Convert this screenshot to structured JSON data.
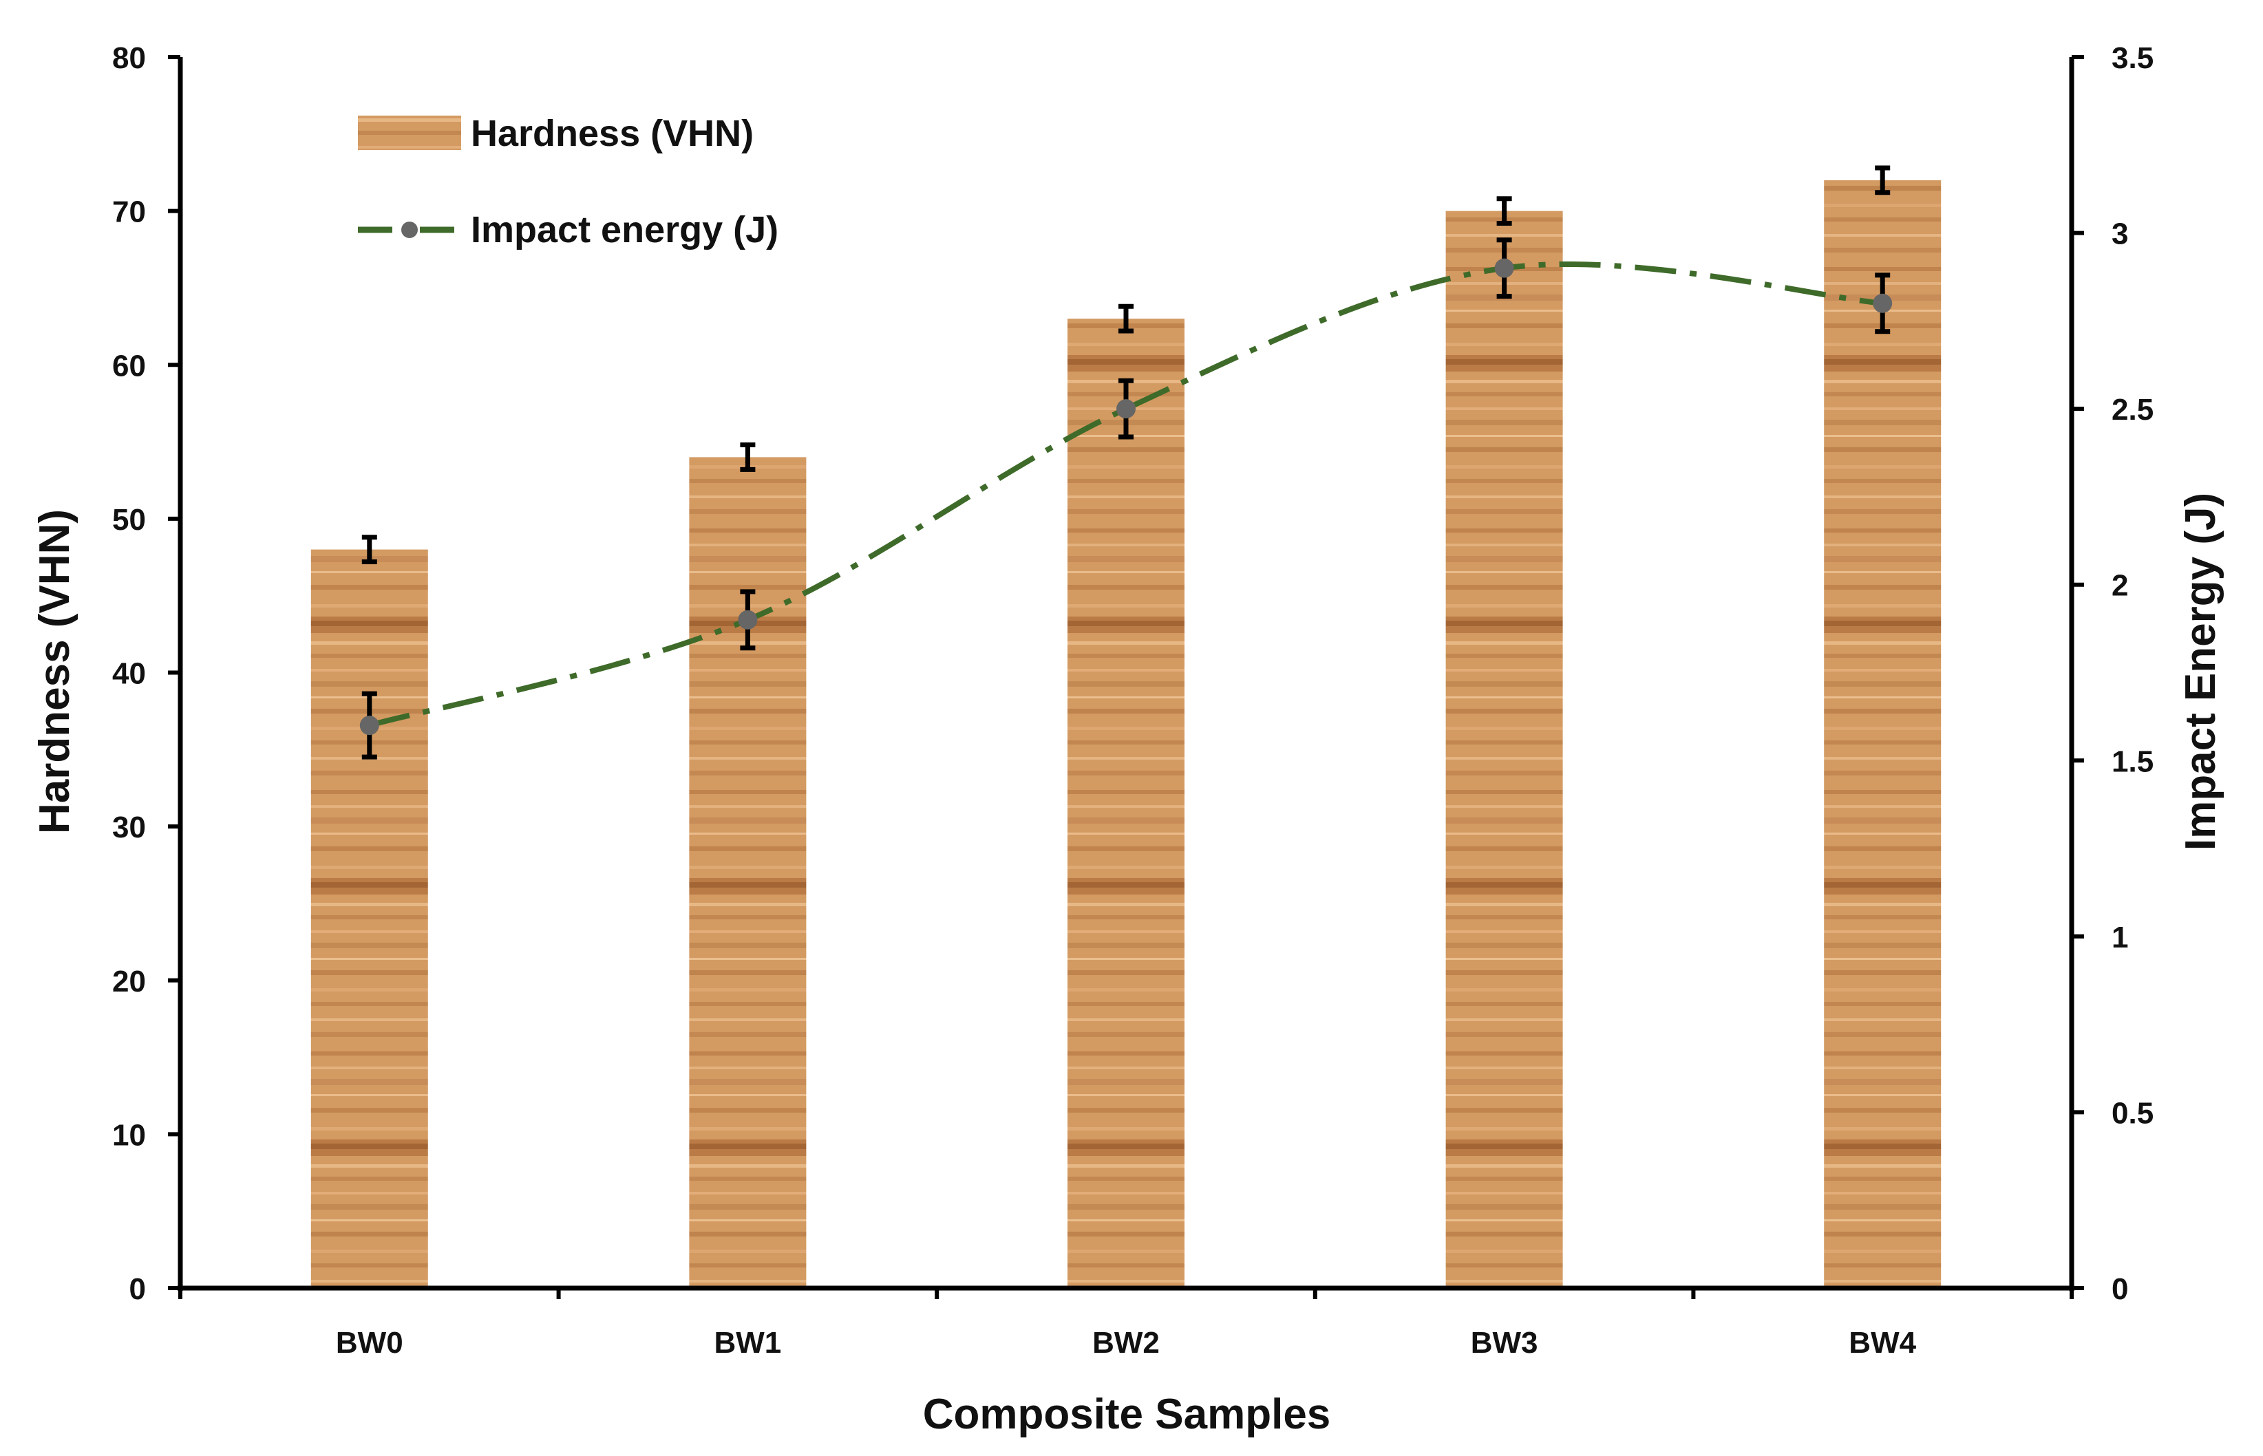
{
  "chart_data": {
    "type": "bar+line",
    "title": "",
    "xlabel": "Composite Samples",
    "categories": [
      "BW0",
      "BW1",
      "BW2",
      "BW3",
      "BW4"
    ],
    "series": [
      {
        "name": "Hardness (VHN)",
        "type": "bar",
        "axis": "left",
        "values": [
          48,
          54,
          63,
          70,
          72
        ],
        "error": [
          0.8,
          0.8,
          0.8,
          0.8,
          0.8
        ],
        "color": "#c8894f"
      },
      {
        "name": "Impact energy (J)",
        "type": "line",
        "axis": "right",
        "values": [
          1.6,
          1.9,
          2.5,
          2.9,
          2.8
        ],
        "error": [
          0.09,
          0.08,
          0.08,
          0.08,
          0.08
        ],
        "color": "#3f6b2a",
        "marker_color": "#666666",
        "line_style": "dash-dot",
        "smooth": true
      }
    ],
    "y_left": {
      "label": "Hardness (VHN)",
      "range": [
        0,
        80
      ],
      "ticks": [
        0,
        10,
        20,
        30,
        40,
        50,
        60,
        70,
        80
      ],
      "tick_labels": [
        "0",
        "10",
        "20",
        "30",
        "40",
        "50",
        "60",
        "70",
        "80"
      ]
    },
    "y_right": {
      "label": "Impact Energy (J)",
      "range": [
        0,
        3.5
      ],
      "ticks": [
        0,
        0.5,
        1,
        1.5,
        2,
        2.5,
        3,
        3.5
      ],
      "tick_labels": [
        "0",
        "0.5",
        "1",
        "1.5",
        "2",
        "2.5",
        "3",
        "3.5"
      ]
    },
    "grid": false,
    "legend": {
      "position": "top-left",
      "entries": [
        "Hardness (VHN)",
        "Impact energy (J)"
      ]
    }
  }
}
